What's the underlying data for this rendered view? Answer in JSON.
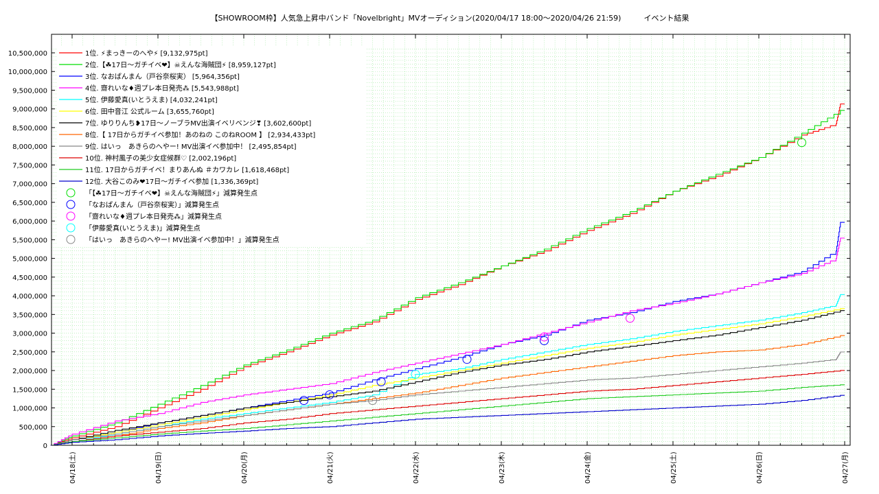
{
  "chart_data": {
    "type": "line",
    "title": "【SHOWROOM枠】人気急上昇中バンド「Novelbright」MVオーディション(2020/04/17 18:00〜2020/04/26 21:59)　　　イベント結果",
    "xlabel": "",
    "ylabel": "",
    "x_ticks": [
      "04/18(土)",
      "04/19(日)",
      "04/20(月)",
      "04/21(火)",
      "04/22(水)",
      "04/23(木)",
      "04/24(金)",
      "04/25(土)",
      "04/26(日)",
      "04/27(月)"
    ],
    "x_range": [
      -0.25,
      9.0
    ],
    "y_ticks": [
      "0",
      "500,000",
      "1,000,000",
      "1,500,000",
      "2,000,000",
      "2,500,000",
      "3,000,000",
      "3,500,000",
      "4,000,000",
      "4,500,000",
      "5,000,000",
      "5,500,000",
      "6,000,000",
      "6,500,000",
      "7,000,000",
      "7,500,000",
      "8,000,000",
      "8,500,000",
      "9,000,000",
      "9,500,000",
      "10,000,000",
      "10,500,000"
    ],
    "ylim": [
      0,
      10500000
    ],
    "grid": true,
    "legend_position": "top-left",
    "series": [
      {
        "name": "1位. ⚡まっきーのへや⚡ [9,132,975pt]",
        "color": "#ff0000",
        "points": [
          [
            -0.25,
            0
          ],
          [
            0,
            200000
          ],
          [
            0.5,
            500000
          ],
          [
            1,
            1000000
          ],
          [
            1.5,
            1500000
          ],
          [
            2,
            2100000
          ],
          [
            2.5,
            2500000
          ],
          [
            3,
            2950000
          ],
          [
            3.5,
            3300000
          ],
          [
            4,
            3900000
          ],
          [
            4.5,
            4300000
          ],
          [
            5,
            4800000
          ],
          [
            5.5,
            5200000
          ],
          [
            6,
            5750000
          ],
          [
            6.5,
            6200000
          ],
          [
            7,
            6800000
          ],
          [
            7.5,
            7200000
          ],
          [
            8,
            7700000
          ],
          [
            8.5,
            8300000
          ],
          [
            8.9,
            8600000
          ],
          [
            8.95,
            9132975
          ],
          [
            9.0,
            9132975
          ]
        ]
      },
      {
        "name": "2位.【☘17日〜ガチイベ❤】☠えんな海賊団⚡ [8,959,127pt]",
        "color": "#00dd00",
        "points": [
          [
            -0.25,
            0
          ],
          [
            0,
            250000
          ],
          [
            0.5,
            600000
          ],
          [
            1,
            1100000
          ],
          [
            1.5,
            1600000
          ],
          [
            2,
            2150000
          ],
          [
            2.5,
            2550000
          ],
          [
            3,
            3000000
          ],
          [
            3.5,
            3350000
          ],
          [
            4,
            3950000
          ],
          [
            4.5,
            4350000
          ],
          [
            5,
            4800000
          ],
          [
            5.5,
            5250000
          ],
          [
            6,
            5800000
          ],
          [
            6.5,
            6250000
          ],
          [
            7,
            6800000
          ],
          [
            7.5,
            7250000
          ],
          [
            8,
            7700000
          ],
          [
            8.5,
            8350000
          ],
          [
            8.95,
            8959127
          ],
          [
            9.0,
            8959127
          ]
        ]
      },
      {
        "name": "3位. なおぱんまん（戸谷奈桜実） [5,964,356pt]",
        "color": "#0000ff",
        "points": [
          [
            -0.25,
            0
          ],
          [
            0,
            150000
          ],
          [
            0.5,
            350000
          ],
          [
            1,
            600000
          ],
          [
            1.5,
            800000
          ],
          [
            2,
            1000000
          ],
          [
            2.5,
            1200000
          ],
          [
            3,
            1400000
          ],
          [
            3.5,
            1750000
          ],
          [
            4,
            2050000
          ],
          [
            4.5,
            2350000
          ],
          [
            5,
            2700000
          ],
          [
            5.5,
            2950000
          ],
          [
            6,
            3350000
          ],
          [
            6.5,
            3550000
          ],
          [
            7,
            3850000
          ],
          [
            7.5,
            4050000
          ],
          [
            8,
            4350000
          ],
          [
            8.5,
            4650000
          ],
          [
            8.9,
            5200000
          ],
          [
            8.95,
            5964356
          ],
          [
            9.0,
            5964356
          ]
        ]
      },
      {
        "name": "4位. 齋れいな♦週プレ本日発売⁂ [5,543,988pt]",
        "color": "#ff00ff",
        "points": [
          [
            -0.25,
            0
          ],
          [
            0,
            300000
          ],
          [
            0.5,
            650000
          ],
          [
            1,
            850000
          ],
          [
            1.5,
            1150000
          ],
          [
            2,
            1350000
          ],
          [
            2.5,
            1500000
          ],
          [
            3,
            1650000
          ],
          [
            3.5,
            1950000
          ],
          [
            4,
            2200000
          ],
          [
            4.5,
            2450000
          ],
          [
            5,
            2700000
          ],
          [
            5.5,
            3000000
          ],
          [
            6,
            3300000
          ],
          [
            6.5,
            3600000
          ],
          [
            7,
            3800000
          ],
          [
            7.5,
            4050000
          ],
          [
            8,
            4350000
          ],
          [
            8.5,
            4600000
          ],
          [
            8.9,
            5000000
          ],
          [
            8.95,
            5543988
          ],
          [
            9.0,
            5543988
          ]
        ]
      },
      {
        "name": "5位. 伊藤愛真(いとうえま) [4,032,241pt]",
        "color": "#00ffff",
        "points": [
          [
            -0.25,
            0
          ],
          [
            0,
            100000
          ],
          [
            0.5,
            300000
          ],
          [
            1,
            500000
          ],
          [
            1.5,
            700000
          ],
          [
            2,
            850000
          ],
          [
            2.5,
            1000000
          ],
          [
            3,
            1150000
          ],
          [
            3.5,
            1350000
          ],
          [
            4,
            1900000
          ],
          [
            4.5,
            2050000
          ],
          [
            5,
            2300000
          ],
          [
            5.5,
            2500000
          ],
          [
            6,
            2700000
          ],
          [
            6.5,
            2850000
          ],
          [
            7,
            3050000
          ],
          [
            7.5,
            3200000
          ],
          [
            8,
            3350000
          ],
          [
            8.5,
            3550000
          ],
          [
            8.9,
            3750000
          ],
          [
            8.95,
            4032241
          ],
          [
            9.0,
            4032241
          ]
        ]
      },
      {
        "name": "6位. 田中音江 公式ルーム [3,655,760pt]",
        "color": "#ffff00",
        "points": [
          [
            -0.25,
            0
          ],
          [
            0,
            150000
          ],
          [
            0.5,
            350000
          ],
          [
            1,
            550000
          ],
          [
            1.5,
            750000
          ],
          [
            2,
            950000
          ],
          [
            2.5,
            1150000
          ],
          [
            3,
            1350000
          ],
          [
            3.5,
            1600000
          ],
          [
            4,
            1800000
          ],
          [
            4.5,
            2000000
          ],
          [
            5,
            2200000
          ],
          [
            5.5,
            2400000
          ],
          [
            6,
            2600000
          ],
          [
            6.5,
            2750000
          ],
          [
            7,
            2950000
          ],
          [
            7.5,
            3100000
          ],
          [
            8,
            3250000
          ],
          [
            8.5,
            3450000
          ],
          [
            8.95,
            3655760
          ],
          [
            9.0,
            3655760
          ]
        ]
      },
      {
        "name": "7位. ゆりりんち❥17日〜ノーブラMV出演イベリベンジ❣ [3,602,600pt]",
        "color": "#000000",
        "points": [
          [
            -0.25,
            0
          ],
          [
            0,
            150000
          ],
          [
            0.5,
            400000
          ],
          [
            1,
            600000
          ],
          [
            1.5,
            800000
          ],
          [
            2,
            1000000
          ],
          [
            2.5,
            1150000
          ],
          [
            3,
            1300000
          ],
          [
            3.5,
            1450000
          ],
          [
            4,
            1700000
          ],
          [
            4.5,
            1950000
          ],
          [
            5,
            2150000
          ],
          [
            5.5,
            2300000
          ],
          [
            6,
            2500000
          ],
          [
            6.5,
            2650000
          ],
          [
            7,
            2800000
          ],
          [
            7.5,
            2950000
          ],
          [
            8,
            3150000
          ],
          [
            8.5,
            3350000
          ],
          [
            8.95,
            3602600
          ],
          [
            9.0,
            3602600
          ]
        ]
      },
      {
        "name": "8位.【 17日からガチイベ参加！あのねの このねROOM 】 [2,934,433pt]",
        "color": "#ff6600",
        "points": [
          [
            -0.25,
            0
          ],
          [
            0,
            100000
          ],
          [
            0.5,
            250000
          ],
          [
            1,
            450000
          ],
          [
            1.5,
            600000
          ],
          [
            2,
            800000
          ],
          [
            2.5,
            950000
          ],
          [
            3,
            1100000
          ],
          [
            3.5,
            1250000
          ],
          [
            4,
            1400000
          ],
          [
            4.5,
            1600000
          ],
          [
            5,
            1800000
          ],
          [
            5.5,
            1950000
          ],
          [
            6,
            2100000
          ],
          [
            6.5,
            2250000
          ],
          [
            7,
            2400000
          ],
          [
            7.5,
            2500000
          ],
          [
            8,
            2550000
          ],
          [
            8.5,
            2700000
          ],
          [
            8.95,
            2934433
          ],
          [
            9.0,
            2934433
          ]
        ]
      },
      {
        "name": "9位. はいっ　あきらのへやー! MV出演イベ参加中！ [2,495,854pt]",
        "color": "#888888",
        "points": [
          [
            -0.25,
            0
          ],
          [
            0,
            150000
          ],
          [
            0.5,
            300000
          ],
          [
            1,
            500000
          ],
          [
            1.5,
            650000
          ],
          [
            2,
            800000
          ],
          [
            2.5,
            950000
          ],
          [
            3,
            1100000
          ],
          [
            3.5,
            1200000
          ],
          [
            4,
            1350000
          ],
          [
            4.5,
            1450000
          ],
          [
            5,
            1550000
          ],
          [
            5.5,
            1650000
          ],
          [
            6,
            1750000
          ],
          [
            6.5,
            1800000
          ],
          [
            7,
            1900000
          ],
          [
            7.5,
            2000000
          ],
          [
            8,
            2100000
          ],
          [
            8.5,
            2200000
          ],
          [
            8.9,
            2300000
          ],
          [
            8.95,
            2495854
          ],
          [
            9.0,
            2495854
          ]
        ]
      },
      {
        "name": "10位. 神村風子の美少女症候群♡ [2,002,196pt]",
        "color": "#dd0000",
        "points": [
          [
            -0.25,
            0
          ],
          [
            0,
            100000
          ],
          [
            0.5,
            250000
          ],
          [
            1,
            350000
          ],
          [
            1.5,
            450000
          ],
          [
            2,
            600000
          ],
          [
            2.5,
            700000
          ],
          [
            3,
            850000
          ],
          [
            3.5,
            950000
          ],
          [
            4,
            1050000
          ],
          [
            4.5,
            1150000
          ],
          [
            5,
            1250000
          ],
          [
            5.5,
            1350000
          ],
          [
            6,
            1450000
          ],
          [
            6.5,
            1500000
          ],
          [
            7,
            1600000
          ],
          [
            7.5,
            1700000
          ],
          [
            8,
            1800000
          ],
          [
            8.5,
            1900000
          ],
          [
            8.95,
            2002196
          ],
          [
            9.0,
            2002196
          ]
        ]
      },
      {
        "name": "11位. 17日からガチイベ！まりあんぬ ＃カワカレ [1,618,468pt]",
        "color": "#22cc22",
        "points": [
          [
            -0.25,
            0
          ],
          [
            0,
            100000
          ],
          [
            0.5,
            200000
          ],
          [
            1,
            300000
          ],
          [
            1.5,
            380000
          ],
          [
            2,
            450000
          ],
          [
            2.5,
            550000
          ],
          [
            3,
            650000
          ],
          [
            3.5,
            750000
          ],
          [
            4,
            850000
          ],
          [
            4.5,
            950000
          ],
          [
            5,
            1050000
          ],
          [
            5.5,
            1150000
          ],
          [
            6,
            1250000
          ],
          [
            6.5,
            1300000
          ],
          [
            7,
            1350000
          ],
          [
            7.5,
            1400000
          ],
          [
            8,
            1450000
          ],
          [
            8.5,
            1550000
          ],
          [
            8.95,
            1618468
          ],
          [
            9.0,
            1618468
          ]
        ]
      },
      {
        "name": "12位. 大谷このみ❤17日〜ガチイベ参加 [1,336,369pt]",
        "color": "#0000cc",
        "points": [
          [
            -0.25,
            0
          ],
          [
            0,
            80000
          ],
          [
            0.5,
            150000
          ],
          [
            1,
            250000
          ],
          [
            1.5,
            320000
          ],
          [
            2,
            380000
          ],
          [
            2.5,
            450000
          ],
          [
            3,
            500000
          ],
          [
            3.5,
            600000
          ],
          [
            4,
            700000
          ],
          [
            4.5,
            750000
          ],
          [
            5,
            800000
          ],
          [
            5.5,
            850000
          ],
          [
            6,
            900000
          ],
          [
            6.5,
            950000
          ],
          [
            7,
            1000000
          ],
          [
            7.5,
            1050000
          ],
          [
            8,
            1100000
          ],
          [
            8.5,
            1200000
          ],
          [
            8.95,
            1336369
          ],
          [
            9.0,
            1336369
          ]
        ]
      }
    ],
    "markers": [
      {
        "name": "「【☘17日〜ガチイベ❤】☠えんな海賊団⚡」減算発生点",
        "color": "#00dd00",
        "points": [
          [
            8.5,
            8100000
          ]
        ]
      },
      {
        "name": "「なおぱんまん（戸谷奈桜実）」減算発生点",
        "color": "#0000ff",
        "points": [
          [
            2.7,
            1200000
          ],
          [
            3.0,
            1350000
          ],
          [
            3.6,
            1700000
          ],
          [
            4.6,
            2300000
          ],
          [
            5.5,
            2800000
          ]
        ]
      },
      {
        "name": "「齋れいな♦週プレ本日発売⁂」減算発生点",
        "color": "#ff00ff",
        "points": [
          [
            5.5,
            2900000
          ],
          [
            6.5,
            3400000
          ]
        ]
      },
      {
        "name": "「伊藤愛真(いとうえま)」減算発生点",
        "color": "#00ffff",
        "points": [
          [
            4.0,
            1900000
          ]
        ]
      },
      {
        "name": "「はいっ　あきらのへやー! MV出演イベ参加中！」減算発生点",
        "color": "#888888",
        "points": [
          [
            3.5,
            1200000
          ]
        ]
      }
    ]
  }
}
